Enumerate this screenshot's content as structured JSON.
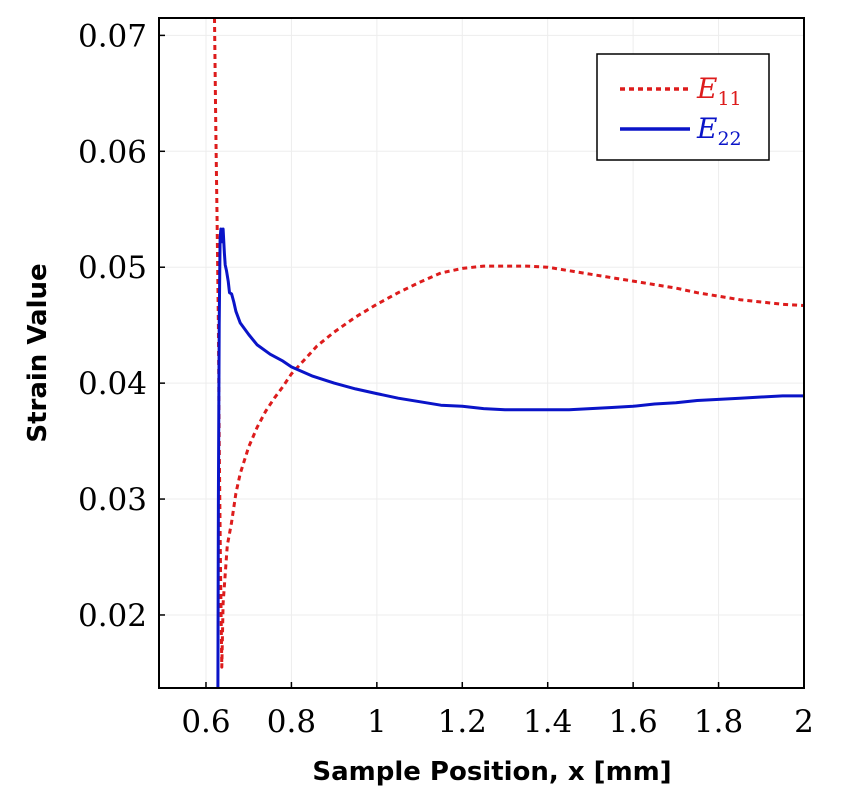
{
  "chart_data": {
    "type": "line",
    "title": "",
    "xlabel": "Sample Position, x [mm]",
    "ylabel": "Strain Value",
    "xlim": [
      0.49,
      2.0
    ],
    "ylim": [
      0.0137,
      0.0715
    ],
    "grid": true,
    "legend_position": "top-right",
    "x_ticks": [
      {
        "value": 0.6,
        "label": "0.6"
      },
      {
        "value": 0.8,
        "label": "0.8"
      },
      {
        "value": 1.0,
        "label": "1"
      },
      {
        "value": 1.2,
        "label": "1.2"
      },
      {
        "value": 1.4,
        "label": "1.4"
      },
      {
        "value": 1.6,
        "label": "1.6"
      },
      {
        "value": 1.8,
        "label": "1.8"
      },
      {
        "value": 2.0,
        "label": "2"
      }
    ],
    "y_ticks": [
      {
        "value": 0.02,
        "label": "0.02"
      },
      {
        "value": 0.03,
        "label": "0.03"
      },
      {
        "value": 0.04,
        "label": "0.04"
      },
      {
        "value": 0.05,
        "label": "0.05"
      },
      {
        "value": 0.06,
        "label": "0.06"
      },
      {
        "value": 0.07,
        "label": "0.07"
      }
    ],
    "series": [
      {
        "name": "E11",
        "label_main": "E",
        "label_sub": "11",
        "color": "#dd1c1c",
        "style": "dotted",
        "x": [
          0.62,
          0.623,
          0.626,
          0.629,
          0.631,
          0.634,
          0.637,
          0.64,
          0.645,
          0.65,
          0.66,
          0.67,
          0.68,
          0.7,
          0.72,
          0.74,
          0.76,
          0.78,
          0.8,
          0.83,
          0.86,
          0.9,
          0.95,
          1.0,
          1.05,
          1.1,
          1.15,
          1.2,
          1.25,
          1.3,
          1.35,
          1.4,
          1.45,
          1.5,
          1.55,
          1.6,
          1.65,
          1.7,
          1.75,
          1.8,
          1.85,
          1.9,
          1.95,
          2.0
        ],
        "values": [
          0.0715,
          0.062,
          0.054,
          0.045,
          0.035,
          0.024,
          0.0155,
          0.021,
          0.0235,
          0.026,
          0.028,
          0.0305,
          0.0322,
          0.0345,
          0.0362,
          0.0376,
          0.0387,
          0.0397,
          0.0408,
          0.042,
          0.0432,
          0.0444,
          0.0457,
          0.0468,
          0.0478,
          0.0487,
          0.0495,
          0.0499,
          0.0501,
          0.0501,
          0.0501,
          0.05,
          0.0497,
          0.0494,
          0.0491,
          0.0488,
          0.0485,
          0.0482,
          0.0478,
          0.0475,
          0.0472,
          0.047,
          0.0468,
          0.0467
        ]
      },
      {
        "name": "E22",
        "label_main": "E",
        "label_sub": "22",
        "color": "#0a14c8",
        "style": "solid",
        "x": [
          0.628,
          0.629,
          0.631,
          0.633,
          0.635,
          0.637,
          0.64,
          0.643,
          0.645,
          0.648,
          0.652,
          0.655,
          0.66,
          0.665,
          0.67,
          0.68,
          0.7,
          0.72,
          0.75,
          0.78,
          0.8,
          0.85,
          0.9,
          0.95,
          1.0,
          1.05,
          1.1,
          1.15,
          1.2,
          1.25,
          1.3,
          1.35,
          1.4,
          1.45,
          1.5,
          1.55,
          1.6,
          1.65,
          1.7,
          1.75,
          1.8,
          1.85,
          1.9,
          1.95,
          2.0
        ],
        "values": [
          0.0137,
          0.03,
          0.045,
          0.0525,
          0.0533,
          0.0522,
          0.0533,
          0.0512,
          0.0502,
          0.0497,
          0.0488,
          0.0478,
          0.0477,
          0.047,
          0.0462,
          0.0452,
          0.0442,
          0.0433,
          0.0425,
          0.0419,
          0.0414,
          0.0406,
          0.04,
          0.0395,
          0.0391,
          0.0387,
          0.0384,
          0.0381,
          0.038,
          0.0378,
          0.0377,
          0.0377,
          0.0377,
          0.0377,
          0.0378,
          0.0379,
          0.038,
          0.0382,
          0.0383,
          0.0385,
          0.0386,
          0.0387,
          0.0388,
          0.0389,
          0.0389
        ]
      }
    ]
  }
}
